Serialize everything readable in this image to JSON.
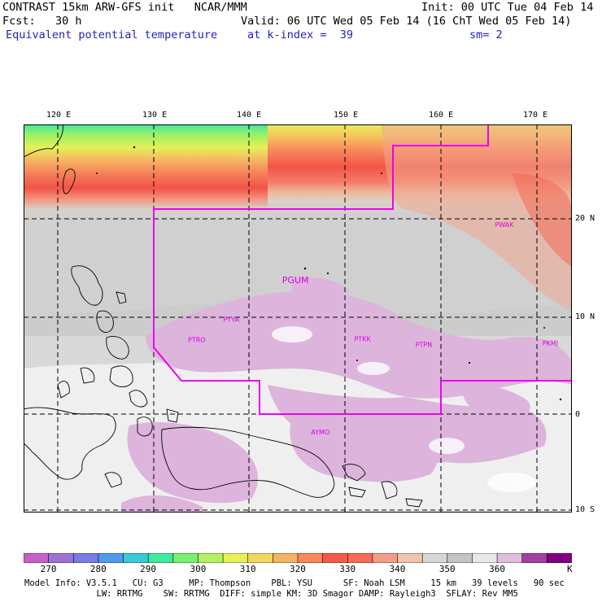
{
  "header": {
    "line1_left": "CONTRAST 15km ARW-GFS init   NCAR/MMM",
    "line1_right": "Init: 00 UTC Tue 04 Feb 14",
    "line2_left": "Fcst:   30 h",
    "line2_right": "Valid: 06 UTC Wed 05 Feb 14 (16 ChT Wed 05 Feb 14)",
    "field_name": "Equivalent potential temperature",
    "level": "at k-index =  39",
    "smoothing": "sm= 2"
  },
  "map": {
    "lon_labels": [
      "120 E",
      "130 E",
      "140 E",
      "150 E",
      "160 E",
      "170 E"
    ],
    "lat_labels": [
      "20 N",
      "10 N",
      "0",
      "10 S"
    ],
    "stations": [
      {
        "id": "PWAK",
        "lon": 166.6,
        "lat": 19.3
      },
      {
        "id": "PGUM",
        "lon": 144.8,
        "lat": 13.5
      },
      {
        "id": "PTYA",
        "lon": 138.1,
        "lat": 9.5
      },
      {
        "id": "PTRO",
        "lon": 134.5,
        "lat": 7.4
      },
      {
        "id": "PTKK",
        "lon": 151.8,
        "lat": 7.5
      },
      {
        "id": "PTPN",
        "lon": 158.2,
        "lat": 6.9
      },
      {
        "id": "PKMJ",
        "lon": 171.4,
        "lat": 7.1
      },
      {
        "id": "AYMO",
        "lon": 147.4,
        "lat": -2.1
      }
    ],
    "colors": {
      "boundary": "#ee00ee",
      "station": "#dd00dd"
    }
  },
  "colorbar": {
    "unit": "K",
    "tick_labels": [
      "270",
      "280",
      "290",
      "300",
      "310",
      "320",
      "330",
      "340",
      "350",
      "360"
    ],
    "colors": [
      "#c85ec8",
      "#a070d8",
      "#7a7ae8",
      "#4e9aee",
      "#3cc8d8",
      "#40e8a0",
      "#78f070",
      "#b4f060",
      "#e6f05a",
      "#f0d860",
      "#f6b460",
      "#f88858",
      "#f45a4a",
      "#f86a5a",
      "#f49c86",
      "#f0c4aa",
      "#d6d6d6",
      "#c4c4c4",
      "#e8e8e8",
      "#e0bde0",
      "#a040a0",
      "#800080"
    ]
  },
  "footer": {
    "line1": "Model Info: V3.5.1   CU: G3     MP: Thompson    PBL: YSU      SF: Noah LSM     15 km   39 levels   90 sec",
    "line2": "              LW: RRTMG    SW: RRTMG  DIFF: simple KM: 3D Smagor DAMP: Rayleigh3  SFLAY: Rev MM5"
  }
}
